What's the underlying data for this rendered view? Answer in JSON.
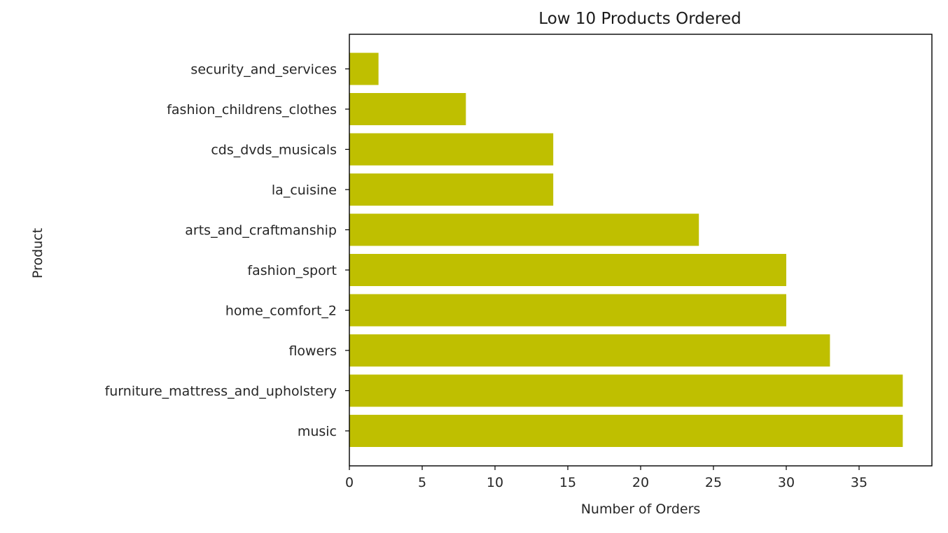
{
  "chart_data": {
    "type": "bar",
    "orientation": "horizontal",
    "title": "Low 10 Products Ordered",
    "xlabel": "Number of Orders",
    "ylabel": "Product",
    "categories": [
      "music",
      "furniture_mattress_and_upholstery",
      "flowers",
      "home_comfort_2",
      "fashion_sport",
      "arts_and_craftmanship",
      "la_cuisine",
      "cds_dvds_musicals",
      "fashion_childrens_clothes",
      "security_and_services"
    ],
    "values": [
      38,
      38,
      33,
      30,
      30,
      24,
      14,
      14,
      8,
      2
    ],
    "xlim": [
      0,
      40
    ],
    "xticks": [
      0,
      5,
      10,
      15,
      20,
      25,
      30,
      35
    ],
    "bar_color": "#bfbf00",
    "grid": false,
    "legend": "none"
  }
}
